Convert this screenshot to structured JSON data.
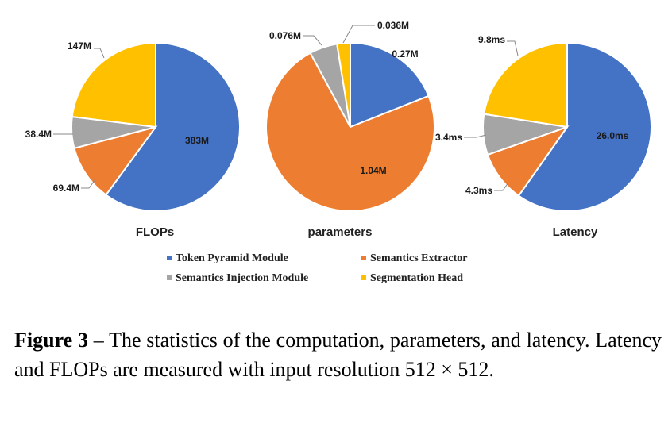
{
  "colors": {
    "token_pyramid": "#4472C4",
    "semantics_extractor": "#ED7D31",
    "semantics_injection": "#A5A5A5",
    "segmentation_head": "#FFC000",
    "leader": "#888888"
  },
  "chart_data": [
    {
      "type": "pie",
      "title": "FLOPs",
      "unit": "M",
      "categories": [
        "Token Pyramid Module",
        "Semantics Extractor",
        "Semantics Injection Module",
        "Segmentation Head"
      ],
      "values": [
        383,
        69.4,
        38.4,
        147
      ],
      "labels": [
        "383M",
        "69.4M",
        "38.4M",
        "147M"
      ]
    },
    {
      "type": "pie",
      "title": "parameters",
      "unit": "M",
      "categories": [
        "Token Pyramid Module",
        "Semantics Extractor",
        "Semantics Injection Module",
        "Segmentation Head"
      ],
      "values": [
        0.27,
        1.04,
        0.076,
        0.036
      ],
      "labels": [
        "0.27M",
        "1.04M",
        "0.076M",
        "0.036M"
      ]
    },
    {
      "type": "pie",
      "title": "Latency",
      "unit": "ms",
      "categories": [
        "Token Pyramid Module",
        "Semantics Extractor",
        "Semantics Injection Module",
        "Segmentation Head"
      ],
      "values": [
        26.0,
        4.3,
        3.4,
        9.8
      ],
      "labels": [
        "26.0ms",
        "4.3ms",
        "3.4ms",
        "9.8ms"
      ]
    }
  ],
  "legend": {
    "items": [
      {
        "label": "Token Pyramid Module",
        "color": "#4472C4"
      },
      {
        "label": "Semantics Extractor",
        "color": "#ED7D31"
      },
      {
        "label": "Semantics Injection Module",
        "color": "#A5A5A5"
      },
      {
        "label": "Segmentation Head",
        "color": "#FFC000"
      }
    ]
  },
  "caption": {
    "figure_label": "Figure 3",
    "text": " – The statistics of the computation, parameters, and latency. Latency and FLOPs are measured with input resolution 512 × 512."
  }
}
